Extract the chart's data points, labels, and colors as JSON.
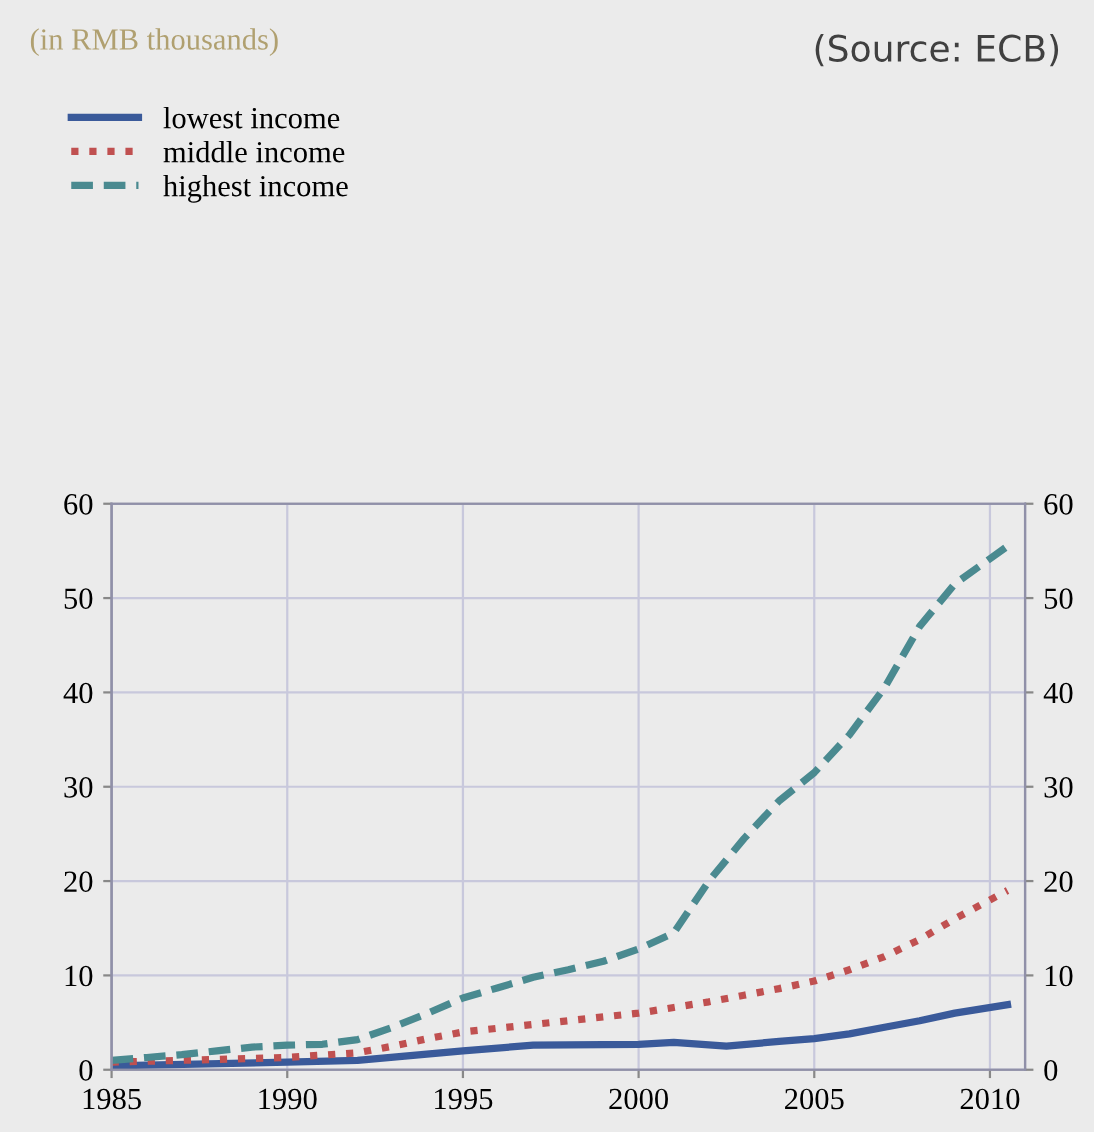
{
  "chart_data": {
    "type": "line",
    "title": "(in RMB thousands)",
    "annotations": [
      "(Source: ECB)"
    ],
    "xlim": [
      1985,
      2011
    ],
    "xticks": [
      1985,
      1990,
      1995,
      2000,
      2005,
      2010
    ],
    "ylim": [
      0,
      60
    ],
    "yticks": [
      0,
      10,
      20,
      30,
      40,
      50,
      60
    ],
    "y2lim": [
      0,
      60
    ],
    "y2ticks": [
      0,
      10,
      20,
      30,
      40,
      50,
      60
    ],
    "grid": true,
    "legend": "top left",
    "marker": "none",
    "series": [
      {
        "name": "lowest income",
        "color": "#3a5a9a",
        "line_style": "solid",
        "x": [
          1985,
          1990,
          1992,
          1995,
          1997,
          2000,
          2001,
          2002.5,
          2004,
          2005,
          2006,
          2007,
          2008,
          2009,
          2010.5
        ],
        "values": [
          0.4,
          0.8,
          1.0,
          2.0,
          2.6,
          2.7,
          2.9,
          2.5,
          3.0,
          3.3,
          3.8,
          4.5,
          5.2,
          6.0,
          6.9
        ]
      },
      {
        "name": "middle income",
        "color": "#c05050",
        "line_style": "dotted",
        "x": [
          1985,
          1990,
          1992,
          1993,
          1994,
          1995,
          1996,
          1997,
          1998,
          1999,
          2000,
          2001,
          2002,
          2003,
          2004,
          2005,
          2006,
          2007,
          2008,
          2009,
          2010.5
        ],
        "values": [
          0.8,
          1.3,
          1.8,
          2.5,
          3.3,
          4.0,
          4.4,
          4.8,
          5.2,
          5.6,
          6.0,
          6.6,
          7.2,
          7.9,
          8.6,
          9.4,
          10.6,
          12.0,
          13.8,
          16.0,
          19.0
        ]
      },
      {
        "name": "highest income",
        "color": "#4a8a90",
        "line_style": "dashed",
        "x": [
          1985,
          1986,
          1987,
          1988,
          1989,
          1990,
          1991,
          1992,
          1993,
          1994,
          1995,
          1996,
          1997,
          1998,
          1999,
          2000,
          2001,
          2002,
          2003,
          2004,
          2005,
          2006,
          2007,
          2008,
          2009,
          2010.5
        ],
        "values": [
          1.0,
          1.3,
          1.6,
          2.0,
          2.4,
          2.6,
          2.7,
          3.2,
          4.5,
          6.0,
          7.6,
          8.7,
          9.8,
          10.6,
          11.5,
          12.8,
          14.5,
          20,
          24.5,
          28.5,
          31.5,
          35.5,
          40.5,
          47,
          51.5,
          55.5
        ]
      }
    ]
  }
}
